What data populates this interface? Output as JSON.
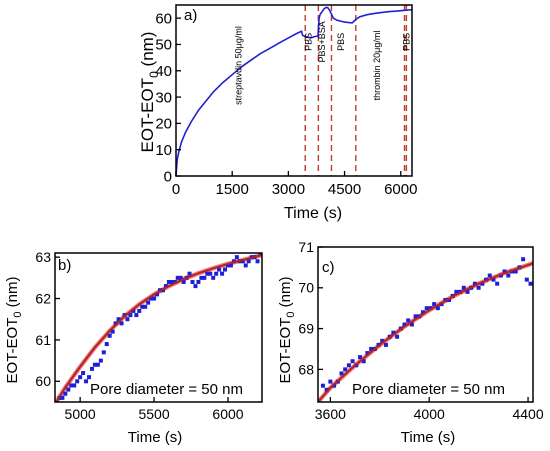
{
  "chart_data": [
    {
      "panel_label": "a)",
      "type": "line",
      "xlabel": "Time (s)",
      "ylabel_main": "EOT-EOT",
      "ylabel_sub": "0",
      "ylabel_unit": " (nm)",
      "xlim": [
        0,
        6300
      ],
      "ylim": [
        0,
        65
      ],
      "x_ticks": [
        0,
        1500,
        3000,
        4500,
        6000
      ],
      "y_ticks": [
        0,
        10,
        20,
        30,
        40,
        50,
        60
      ],
      "colors": {
        "series": "#1f1fd6",
        "event_lines": "#c0392b"
      },
      "series": [
        {
          "x": [
            0,
            30,
            80,
            150,
            250,
            400,
            600,
            800,
            1000,
            1250,
            1500,
            1750,
            2000,
            2250,
            2500,
            2750,
            3000,
            3200,
            3350,
            3380,
            3450,
            3600,
            3700,
            3790,
            3820,
            3850,
            3900,
            3950,
            4000,
            4050,
            4100,
            4150,
            4200,
            4300,
            4500,
            4700,
            4800,
            4900,
            5100,
            5300,
            5500,
            5700,
            5900,
            6100,
            6300
          ],
          "y": [
            0,
            6,
            9.5,
            13,
            16.5,
            20.5,
            25,
            28.5,
            32,
            35.5,
            38.5,
            41.5,
            44,
            46.5,
            48.5,
            50.5,
            52.5,
            54,
            55,
            53.5,
            53,
            52.5,
            53,
            53.2,
            60,
            61.5,
            62.5,
            63.5,
            64,
            64,
            63,
            61.5,
            60,
            59.2,
            58.5,
            58.2,
            59.5,
            60.5,
            61.3,
            61.8,
            62.2,
            62.5,
            62.7,
            63,
            63.2
          ]
        }
      ],
      "events": [
        {
          "x": 3450,
          "label": "streptavdin 50μg/ml",
          "label_x": 1750,
          "label_y": 42
        },
        {
          "x": 3800,
          "label": "PBS",
          "label_x": 3620,
          "label_y": 51
        },
        {
          "x": 4150,
          "label": "PBS+BSA",
          "label_x": 3980,
          "label_y": 51
        },
        {
          "x": 4800,
          "label": "PBS",
          "label_x": 4480,
          "label_y": 51
        },
        {
          "x": 6100,
          "label": "thrombin 20μg/ml",
          "label_x": 5450,
          "label_y": 42
        },
        {
          "x": 6150,
          "label": "PBS",
          "label_x": 6230,
          "label_y": 51
        }
      ]
    },
    {
      "panel_label": "b)",
      "type": "scatter",
      "xlabel": "Time (s)",
      "ylabel_main": "EOT-EOT",
      "ylabel_sub": "0",
      "ylabel_unit": " (nm)",
      "annotation": "Pore diameter = 50 nm",
      "xlim": [
        4830,
        6230
      ],
      "ylim": [
        59.5,
        63.1
      ],
      "x_ticks": [
        5000,
        5500,
        6000
      ],
      "y_ticks": [
        60,
        61,
        62,
        63
      ],
      "colors": {
        "points": "#1f1fd6",
        "fit": "#b22222",
        "fit_highlight": "#f08080"
      },
      "points": {
        "x": [
          4840,
          4860,
          4880,
          4900,
          4920,
          4940,
          4960,
          4980,
          5000,
          5020,
          5040,
          5060,
          5080,
          5100,
          5120,
          5140,
          5160,
          5180,
          5200,
          5220,
          5240,
          5260,
          5280,
          5300,
          5320,
          5340,
          5360,
          5380,
          5400,
          5420,
          5440,
          5460,
          5480,
          5500,
          5520,
          5540,
          5560,
          5580,
          5600,
          5620,
          5640,
          5660,
          5680,
          5700,
          5720,
          5740,
          5760,
          5780,
          5800,
          5820,
          5840,
          5860,
          5880,
          5900,
          5920,
          5940,
          5960,
          5980,
          6000,
          6020,
          6040,
          6060,
          6080,
          6100,
          6120,
          6140,
          6160,
          6180,
          6200,
          6220
        ],
        "y": [
          59.5,
          59.6,
          59.6,
          59.7,
          59.8,
          59.9,
          59.9,
          60.0,
          60.1,
          60.2,
          60.0,
          60.1,
          60.3,
          60.4,
          60.4,
          60.5,
          60.7,
          60.9,
          61.1,
          61.2,
          61.4,
          61.5,
          61.4,
          61.6,
          61.5,
          61.6,
          61.7,
          61.6,
          61.7,
          61.8,
          61.8,
          61.9,
          62.0,
          62.0,
          62.1,
          62.2,
          62.2,
          62.3,
          62.4,
          62.4,
          62.4,
          62.5,
          62.5,
          62.4,
          62.5,
          62.6,
          62.4,
          62.3,
          62.4,
          62.5,
          62.5,
          62.6,
          62.6,
          62.5,
          62.6,
          62.7,
          62.6,
          62.7,
          62.8,
          62.8,
          62.9,
          63.0,
          62.9,
          62.9,
          62.8,
          62.9,
          63.0,
          63.0,
          62.9,
          63.1
        ]
      },
      "fit": {
        "x": [
          4830,
          4900,
          5000,
          5100,
          5200,
          5300,
          5400,
          5500,
          5600,
          5700,
          5800,
          5900,
          6000,
          6100,
          6230
        ],
        "y": [
          59.45,
          59.85,
          60.35,
          60.82,
          61.22,
          61.57,
          61.86,
          62.1,
          62.3,
          62.47,
          62.61,
          62.73,
          62.84,
          62.93,
          63.05
        ]
      }
    },
    {
      "panel_label": "c)",
      "type": "scatter",
      "xlabel": "Time (s)",
      "ylabel_main": "EOT-EOT",
      "ylabel_sub": "0",
      "ylabel_unit": " (nm)",
      "annotation": "Pore diameter = 50 nm",
      "xlim": [
        3550,
        4420
      ],
      "ylim": [
        67.2,
        71
      ],
      "x_ticks": [
        3600,
        4000,
        4400
      ],
      "y_ticks": [
        68,
        69,
        70,
        71
      ],
      "colors": {
        "points": "#1f1fd6",
        "fit": "#b22222",
        "fit_highlight": "#f08080"
      },
      "points": {
        "x": [
          3570,
          3585,
          3600,
          3615,
          3630,
          3645,
          3660,
          3675,
          3690,
          3705,
          3720,
          3735,
          3750,
          3765,
          3780,
          3795,
          3810,
          3825,
          3840,
          3855,
          3870,
          3885,
          3900,
          3915,
          3930,
          3945,
          3960,
          3975,
          3990,
          4005,
          4020,
          4035,
          4050,
          4065,
          4080,
          4095,
          4110,
          4125,
          4140,
          4155,
          4170,
          4185,
          4200,
          4215,
          4230,
          4245,
          4260,
          4275,
          4290,
          4305,
          4320,
          4335,
          4350,
          4365,
          4380,
          4395,
          4410
        ],
        "y": [
          67.6,
          67.5,
          67.7,
          67.6,
          67.7,
          67.9,
          68.0,
          68.1,
          68.2,
          68.1,
          68.3,
          68.2,
          68.4,
          68.5,
          68.5,
          68.6,
          68.7,
          68.6,
          68.8,
          68.9,
          68.8,
          69.0,
          69.1,
          69.2,
          69.1,
          69.3,
          69.3,
          69.4,
          69.5,
          69.5,
          69.6,
          69.5,
          69.6,
          69.7,
          69.7,
          69.8,
          69.9,
          69.9,
          70.0,
          69.9,
          70.0,
          70.1,
          70.0,
          70.1,
          70.2,
          70.3,
          70.2,
          70.1,
          70.3,
          70.4,
          70.3,
          70.4,
          70.4,
          70.5,
          70.7,
          70.2,
          70.1
        ]
      },
      "fit": {
        "x": [
          3550,
          3600,
          3700,
          3800,
          3900,
          4000,
          4100,
          4200,
          4300,
          4420
        ],
        "y": [
          67.2,
          67.55,
          68.1,
          68.6,
          69.05,
          69.45,
          69.8,
          70.1,
          70.35,
          70.6
        ]
      }
    }
  ]
}
